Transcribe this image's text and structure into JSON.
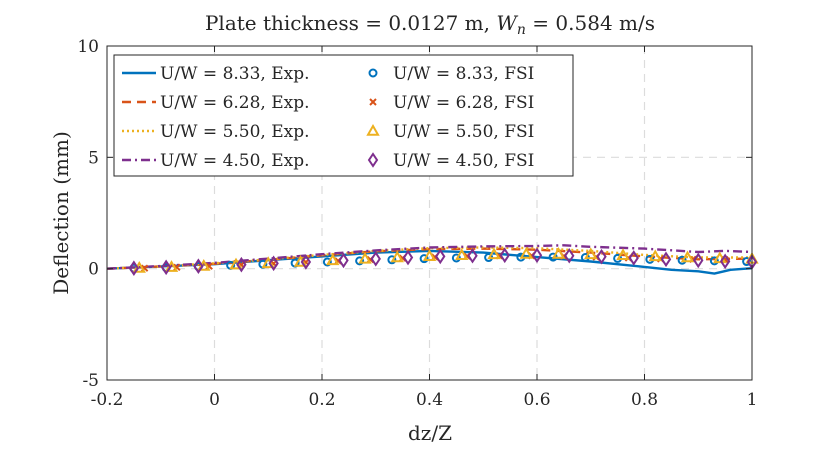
{
  "chart_data": {
    "type": "line",
    "title": "Plate thickness = 0.0127 m, W_n = 0.584 m/s",
    "title_parts": {
      "prefix": "Plate thickness = 0.0127 m, ",
      "var": "W",
      "sub": "n",
      "suffix": " = 0.584 m/s"
    },
    "xlabel": "dz/Z",
    "ylabel": "Deflection (mm)",
    "xlim": [
      -0.2,
      1
    ],
    "ylim": [
      -5,
      10
    ],
    "xticks": [
      -0.2,
      0,
      0.2,
      0.4,
      0.6,
      0.8,
      1
    ],
    "yticks": [
      -5,
      0,
      5,
      10
    ],
    "xtick_labels": [
      "-0.2",
      "0",
      "0.2",
      "0.4",
      "0.6",
      "0.8",
      "1"
    ],
    "ytick_labels": [
      "-5",
      "0",
      "5",
      "10"
    ],
    "grid": true,
    "legend_position": "top-left",
    "series": [
      {
        "name": "U/W = 8.33, Exp.",
        "kind": "line",
        "style": "solid",
        "color": "#0072BD",
        "x": [
          -0.2,
          -0.1,
          0,
          0.1,
          0.2,
          0.3,
          0.4,
          0.5,
          0.6,
          0.7,
          0.8,
          0.85,
          0.9,
          0.93,
          0.96,
          1.0
        ],
        "y": [
          0,
          0.1,
          0.2,
          0.38,
          0.55,
          0.72,
          0.8,
          0.72,
          0.52,
          0.32,
          0.08,
          -0.05,
          -0.12,
          -0.22,
          -0.05,
          0.02
        ]
      },
      {
        "name": "U/W = 6.28, Exp.",
        "kind": "line",
        "style": "dashed",
        "color": "#D95319",
        "x": [
          -0.2,
          -0.1,
          0,
          0.1,
          0.2,
          0.3,
          0.4,
          0.5,
          0.6,
          0.7,
          0.8,
          0.9,
          1.0
        ],
        "y": [
          0,
          0.1,
          0.22,
          0.4,
          0.6,
          0.78,
          0.88,
          0.9,
          0.85,
          0.72,
          0.55,
          0.42,
          0.45
        ]
      },
      {
        "name": "U/W = 5.50, Exp.",
        "kind": "line",
        "style": "dotted",
        "color": "#EDB120",
        "x": [
          -0.2,
          -0.1,
          0,
          0.1,
          0.2,
          0.3,
          0.4,
          0.5,
          0.6,
          0.7,
          0.8,
          0.9,
          1.0
        ],
        "y": [
          0,
          0.1,
          0.24,
          0.42,
          0.62,
          0.8,
          0.92,
          0.95,
          0.92,
          0.8,
          0.62,
          0.5,
          0.5
        ]
      },
      {
        "name": "U/W = 4.50, Exp.",
        "kind": "line",
        "style": "dashdot",
        "color": "#7E2F8E",
        "x": [
          -0.2,
          -0.1,
          0,
          0.1,
          0.2,
          0.3,
          0.4,
          0.5,
          0.6,
          0.65,
          0.7,
          0.8,
          0.9,
          0.95,
          1.0
        ],
        "y": [
          0,
          0.12,
          0.26,
          0.45,
          0.65,
          0.82,
          0.95,
          1.0,
          1.02,
          1.05,
          0.98,
          0.9,
          0.75,
          0.8,
          0.75
        ]
      },
      {
        "name": "U/W = 8.33, FSI",
        "kind": "marker",
        "marker": "circle",
        "color": "#0072BD",
        "x": [
          -0.15,
          -0.09,
          -0.03,
          0.03,
          0.09,
          0.15,
          0.21,
          0.27,
          0.33,
          0.39,
          0.45,
          0.51,
          0.57,
          0.63,
          0.69,
          0.75,
          0.81,
          0.87,
          0.93,
          0.99
        ],
        "y": [
          0.02,
          0.05,
          0.1,
          0.15,
          0.2,
          0.25,
          0.3,
          0.35,
          0.4,
          0.45,
          0.48,
          0.5,
          0.52,
          0.52,
          0.5,
          0.46,
          0.42,
          0.38,
          0.35,
          0.32
        ]
      },
      {
        "name": "U/W = 6.28, FSI",
        "kind": "marker",
        "marker": "x",
        "color": "#D95319",
        "x": [
          -0.13,
          -0.07,
          -0.01,
          0.05,
          0.11,
          0.17,
          0.23,
          0.29,
          0.35,
          0.41,
          0.47,
          0.53,
          0.59,
          0.65,
          0.71,
          0.77,
          0.83,
          0.89,
          0.95
        ],
        "y": [
          0.02,
          0.06,
          0.11,
          0.17,
          0.23,
          0.29,
          0.35,
          0.41,
          0.47,
          0.52,
          0.56,
          0.58,
          0.58,
          0.56,
          0.52,
          0.48,
          0.44,
          0.42,
          0.4
        ]
      },
      {
        "name": "U/W = 5.50, FSI",
        "kind": "marker",
        "marker": "triangle",
        "color": "#EDB120",
        "x": [
          -0.14,
          -0.08,
          -0.02,
          0.04,
          0.1,
          0.16,
          0.22,
          0.28,
          0.34,
          0.4,
          0.46,
          0.52,
          0.58,
          0.64,
          0.7,
          0.76,
          0.82,
          0.88,
          0.94,
          1.0
        ],
        "y": [
          0.03,
          0.07,
          0.12,
          0.18,
          0.24,
          0.3,
          0.37,
          0.44,
          0.5,
          0.56,
          0.6,
          0.64,
          0.66,
          0.66,
          0.64,
          0.6,
          0.55,
          0.5,
          0.46,
          0.44
        ]
      },
      {
        "name": "U/W = 4.50, FSI",
        "kind": "marker",
        "marker": "diamond",
        "color": "#7E2F8E",
        "x": [
          -0.15,
          -0.09,
          -0.03,
          0.05,
          0.11,
          0.17,
          0.24,
          0.3,
          0.36,
          0.42,
          0.48,
          0.54,
          0.6,
          0.66,
          0.72,
          0.78,
          0.84,
          0.9,
          0.95,
          1.0
        ],
        "y": [
          0.02,
          0.06,
          0.11,
          0.18,
          0.24,
          0.3,
          0.37,
          0.44,
          0.5,
          0.55,
          0.58,
          0.6,
          0.6,
          0.58,
          0.54,
          0.48,
          0.42,
          0.37,
          0.33,
          0.3
        ]
      }
    ]
  }
}
